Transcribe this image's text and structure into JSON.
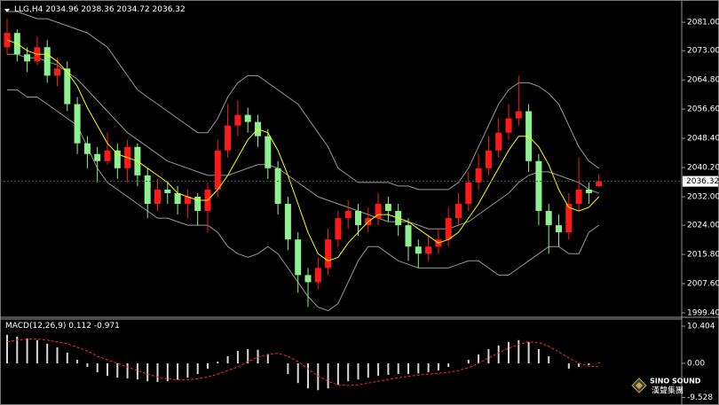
{
  "chart_data": [
    {
      "type": "candlestick",
      "title": "LLG,H4",
      "up_color": "#ff1a1a",
      "down_color": "#8ff08f",
      "ma_color": "#ffff00",
      "band_color": "#9a9a9a",
      "ylim": [
        1998.4,
        2086.0
      ],
      "yticks": [
        {
          "value": 2081,
          "label": "2081.00"
        },
        {
          "value": 2073,
          "label": "2073.00"
        },
        {
          "value": 2064.8,
          "label": "2064.80"
        },
        {
          "value": 2056.6,
          "label": "2056.60"
        },
        {
          "value": 2048.4,
          "label": "2048.40"
        },
        {
          "value": 2040.2,
          "label": "2040.20"
        },
        {
          "value": 2032,
          "label": "2032.00"
        },
        {
          "value": 2024,
          "label": "2024.00"
        },
        {
          "value": 2015.8,
          "label": "2015.80"
        },
        {
          "value": 2007.6,
          "label": "2007.60"
        },
        {
          "value": 1999.4,
          "label": "1999.40"
        }
      ],
      "candles": [
        [
          2074,
          2082,
          2072,
          2078
        ],
        [
          2078,
          2079,
          2070,
          2072
        ],
        [
          2072,
          2074,
          2067,
          2070
        ],
        [
          2070,
          2077,
          2069,
          2074
        ],
        [
          2074,
          2076,
          2064,
          2066
        ],
        [
          2066,
          2071,
          2063,
          2068
        ],
        [
          2068,
          2070,
          2056,
          2058
        ],
        [
          2058,
          2060,
          2044,
          2047
        ],
        [
          2047,
          2049,
          2040,
          2044
        ],
        [
          2044,
          2046,
          2036,
          2042
        ],
        [
          2042,
          2050,
          2041,
          2045
        ],
        [
          2045,
          2047,
          2037,
          2040
        ],
        [
          2040,
          2048,
          2036,
          2046
        ],
        [
          2046,
          2047,
          2035,
          2038
        ],
        [
          2038,
          2040,
          2026,
          2030
        ],
        [
          2030,
          2037,
          2028,
          2034
        ],
        [
          2034,
          2036,
          2030,
          2033
        ],
        [
          2033,
          2035,
          2027,
          2030
        ],
        [
          2030,
          2034,
          2026,
          2032
        ],
        [
          2032,
          2033,
          2024,
          2028
        ],
        [
          2028,
          2036,
          2022,
          2034
        ],
        [
          2034,
          2048,
          2032,
          2045
        ],
        [
          2045,
          2058,
          2043,
          2052
        ],
        [
          2052,
          2059,
          2049,
          2055
        ],
        [
          2055,
          2057,
          2050,
          2053
        ],
        [
          2053,
          2055,
          2046,
          2049
        ],
        [
          2049,
          2051,
          2037,
          2040
        ],
        [
          2040,
          2042,
          2027,
          2030
        ],
        [
          2030,
          2032,
          2017,
          2020
        ],
        [
          2020,
          2022,
          2005,
          2010
        ],
        [
          2010,
          2012,
          2001,
          2008
        ],
        [
          2008,
          2015,
          2006,
          2012
        ],
        [
          2012,
          2023,
          2010,
          2020
        ],
        [
          2020,
          2028,
          2018,
          2026
        ],
        [
          2026,
          2031,
          2023,
          2028
        ],
        [
          2028,
          2030,
          2021,
          2024
        ],
        [
          2024,
          2029,
          2022,
          2026
        ],
        [
          2026,
          2033,
          2024,
          2030
        ],
        [
          2030,
          2032,
          2025,
          2028
        ],
        [
          2028,
          2030,
          2021,
          2024
        ],
        [
          2024,
          2026,
          2014,
          2018
        ],
        [
          2018,
          2020,
          2012,
          2016
        ],
        [
          2016,
          2021,
          2014,
          2018
        ],
        [
          2018,
          2023,
          2016,
          2020
        ],
        [
          2020,
          2029,
          2018,
          2026
        ],
        [
          2026,
          2033,
          2024,
          2030
        ],
        [
          2030,
          2039,
          2028,
          2036
        ],
        [
          2036,
          2044,
          2034,
          2040
        ],
        [
          2040,
          2049,
          2038,
          2045
        ],
        [
          2045,
          2054,
          2043,
          2050
        ],
        [
          2050,
          2058,
          2048,
          2054
        ],
        [
          2054,
          2066,
          2052,
          2056
        ],
        [
          2056,
          2058,
          2039,
          2042
        ],
        [
          2042,
          2044,
          2024,
          2028
        ],
        [
          2028,
          2030,
          2016,
          2024
        ],
        [
          2024,
          2027,
          2018,
          2022
        ],
        [
          2022,
          2033,
          2020,
          2030
        ],
        [
          2030,
          2043,
          2028,
          2034
        ],
        [
          2034,
          2036,
          2030,
          2033
        ],
        [
          2034.96,
          2038.36,
          2034.72,
          2036.32
        ]
      ],
      "ma": [
        2076,
        2075,
        2073,
        2072,
        2072,
        2070,
        2067,
        2063,
        2057,
        2052,
        2047,
        2044,
        2043,
        2042,
        2040,
        2038,
        2036,
        2033,
        2032,
        2031,
        2031,
        2034,
        2038,
        2043,
        2048,
        2051,
        2050,
        2045,
        2038,
        2030,
        2022,
        2016,
        2014,
        2015,
        2019,
        2022,
        2025,
        2027,
        2027,
        2026,
        2025,
        2023,
        2021,
        2019,
        2020,
        2022,
        2026,
        2030,
        2035,
        2040,
        2045,
        2049,
        2049,
        2046,
        2041,
        2034,
        2029,
        2028,
        2029,
        2032
      ],
      "band_mid": [
        2072,
        2072,
        2071,
        2071,
        2070,
        2069,
        2067,
        2065,
        2062,
        2059,
        2056,
        2053,
        2050,
        2048,
        2046,
        2044,
        2042,
        2041,
        2040,
        2039,
        2038,
        2038,
        2038,
        2039,
        2040,
        2041,
        2041,
        2040,
        2038,
        2036,
        2034,
        2032,
        2031,
        2030,
        2029,
        2028,
        2027,
        2026,
        2025,
        2025,
        2025,
        2024,
        2023,
        2023,
        2023,
        2024,
        2025,
        2027,
        2029,
        2031,
        2033,
        2036,
        2038,
        2039,
        2039,
        2038,
        2037,
        2036,
        2034,
        2033
      ],
      "band_upper": [
        2084,
        2084,
        2083,
        2082,
        2082,
        2081,
        2080,
        2079,
        2078,
        2076,
        2074,
        2070,
        2066,
        2062,
        2060,
        2058,
        2056,
        2054,
        2052,
        2050,
        2050,
        2054,
        2060,
        2064,
        2066,
        2066,
        2064,
        2062,
        2060,
        2058,
        2054,
        2050,
        2046,
        2040,
        2038,
        2036,
        2036,
        2036,
        2036,
        2035,
        2035,
        2034,
        2034,
        2034,
        2034,
        2036,
        2040,
        2046,
        2052,
        2058,
        2062,
        2064,
        2064,
        2063,
        2061,
        2058,
        2052,
        2046,
        2042,
        2040
      ],
      "band_lower": [
        2062,
        2062,
        2060,
        2060,
        2058,
        2056,
        2054,
        2052,
        2046,
        2040,
        2036,
        2034,
        2032,
        2030,
        2028,
        2026,
        2026,
        2025,
        2024,
        2024,
        2024,
        2022,
        2018,
        2016,
        2015,
        2016,
        2018,
        2016,
        2012,
        2008,
        2004,
        2001,
        2000,
        2002,
        2008,
        2014,
        2018,
        2018,
        2016,
        2014,
        2013,
        2012,
        2012,
        2012,
        2012,
        2013,
        2014,
        2014,
        2012,
        2010,
        2010,
        2012,
        2014,
        2016,
        2018,
        2018,
        2016,
        2016,
        2022,
        2024
      ]
    },
    {
      "type": "macd",
      "title": "MACD(12,26,9)",
      "histogram_color": "#d8d8d8",
      "signal_color": "#ff2a2a",
      "ylim": [
        -10.4,
        11.9
      ],
      "yticks": [
        10.404,
        {
          "value": 0,
          "label": "0.00"
        },
        -9.528
      ],
      "histogram": [
        8,
        7.5,
        7,
        6.5,
        5.5,
        4.5,
        3,
        1,
        -1,
        -2.5,
        -3.5,
        -4,
        -4.2,
        -4.5,
        -5,
        -5.2,
        -5,
        -4.6,
        -4,
        -3,
        -1.5,
        0.5,
        2,
        3.5,
        4,
        3.8,
        2.5,
        0,
        -3,
        -5.5,
        -7,
        -7.5,
        -7,
        -6,
        -5,
        -4.5,
        -4,
        -3.5,
        -3.2,
        -3,
        -3,
        -2.8,
        -2.5,
        -2,
        -1,
        0,
        1,
        2.5,
        4,
        5,
        6,
        6.5,
        6,
        4,
        2,
        0,
        -1.5,
        -1,
        -0.5,
        0.112
      ],
      "signal": [
        6,
        6.5,
        6.8,
        6.8,
        6.5,
        6,
        5.5,
        4.5,
        3.5,
        2,
        1,
        0,
        -1,
        -2,
        -3,
        -3.8,
        -4.3,
        -4.6,
        -4.6,
        -4.3,
        -3.8,
        -3,
        -2,
        -1,
        0.5,
        1.8,
        2.5,
        2.8,
        2,
        0.5,
        -1.5,
        -3.5,
        -5,
        -6,
        -6.2,
        -6,
        -5.5,
        -5,
        -4.5,
        -4,
        -3.6,
        -3.3,
        -3,
        -2.8,
        -2.5,
        -2,
        -1.2,
        0,
        1.5,
        3,
        4.2,
        5.3,
        6,
        5.8,
        4.8,
        3.2,
        1.5,
        0,
        -0.8,
        -0.971
      ]
    }
  ],
  "watermark": {
    "name": "SINO SOUND",
    "subtitle": "漢聲集團"
  }
}
